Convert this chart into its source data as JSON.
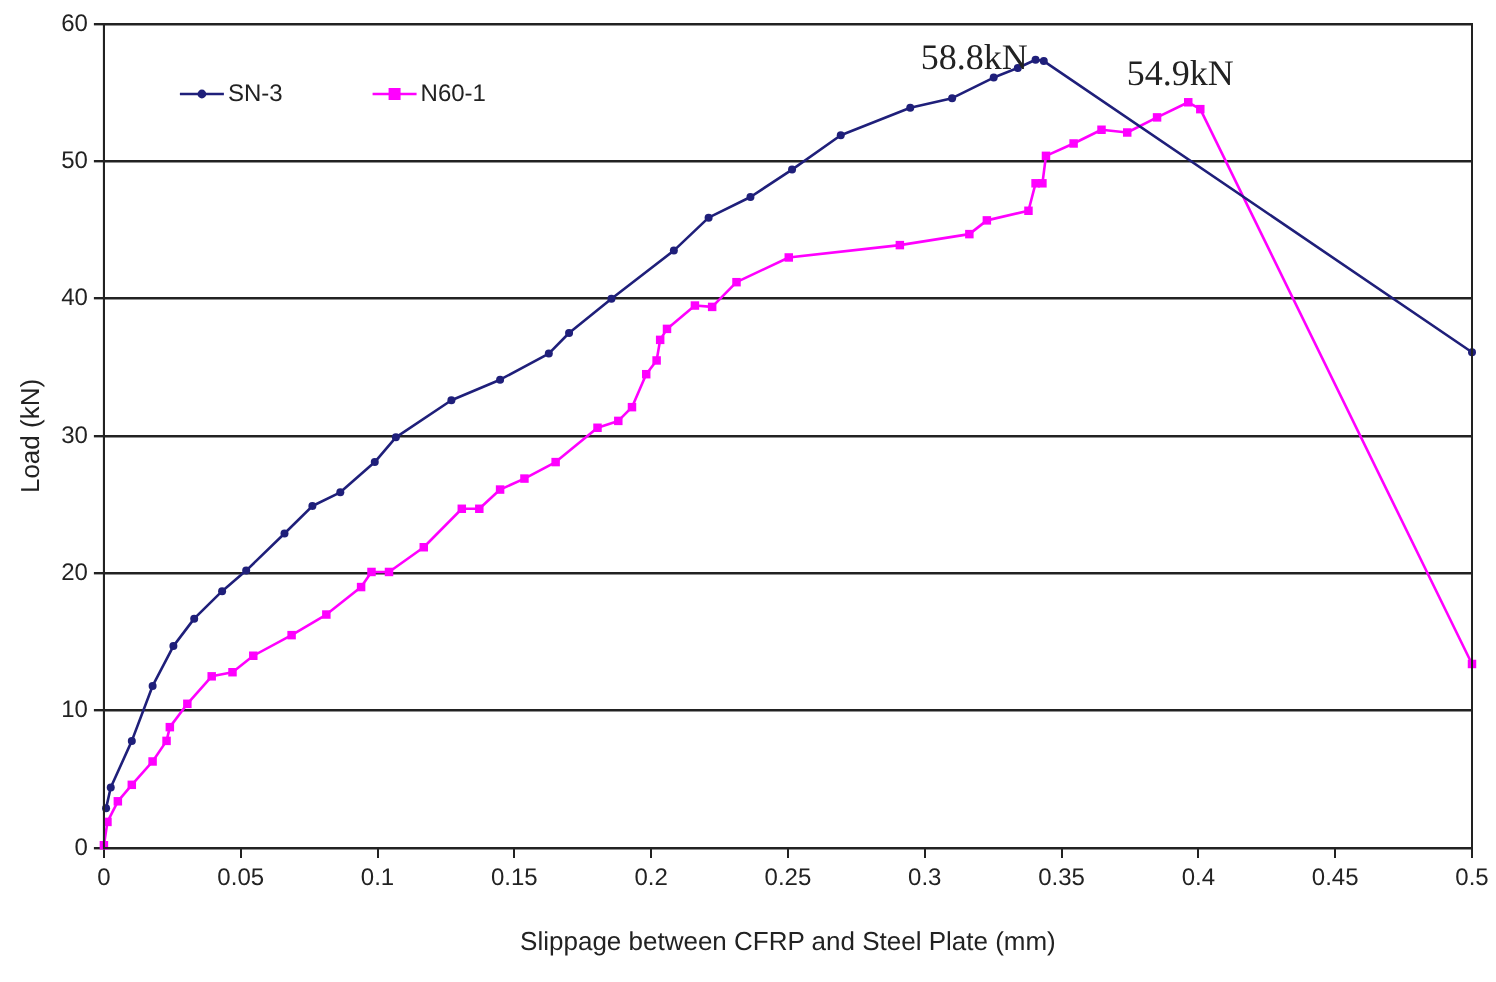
{
  "chart_data": {
    "type": "line",
    "xlabel": "Slippage between CFRP and Steel Plate (mm)",
    "ylabel": "Load (kN)",
    "xlim": [
      0,
      0.5
    ],
    "xticks": [
      0,
      0.05,
      0.1,
      0.15,
      0.2,
      0.25,
      0.3,
      0.35,
      0.4,
      0.45,
      0.5
    ],
    "ylim": [
      0,
      60
    ],
    "yticks": [
      0,
      10,
      20,
      30,
      40,
      50,
      60
    ],
    "grid": "y",
    "legend": "top left",
    "line_style": "solid",
    "annotations": [
      {
        "text": "58.8kN",
        "x": 0.3435,
        "y": 57.3
      },
      {
        "text": "54.9kN",
        "x": 0.4007,
        "y": 53.8
      }
    ],
    "series": [
      {
        "name": "SN-3",
        "color": "#1f1f7a",
        "marker": "circle",
        "x": [
          0.0008,
          0.0025,
          0.0102,
          0.0178,
          0.0254,
          0.033,
          0.0432,
          0.052,
          0.066,
          0.0762,
          0.0864,
          0.099,
          0.1067,
          0.127,
          0.1448,
          0.1626,
          0.17,
          0.1855,
          0.2083,
          0.221,
          0.2363,
          0.2515,
          0.2693,
          0.2947,
          0.31,
          0.3252,
          0.334,
          0.3405,
          0.3435,
          0.5
        ],
        "values": [
          2.9,
          4.4,
          7.8,
          11.8,
          14.7,
          16.7,
          18.7,
          20.2,
          22.9,
          24.9,
          25.9,
          28.1,
          29.9,
          32.6,
          34.1,
          36,
          37.5,
          40,
          43.5,
          45.9,
          47.4,
          49.4,
          51.9,
          53.9,
          54.6,
          56.1,
          56.8,
          57.4,
          57.3,
          36.1
        ]
      },
      {
        "name": "N60-1",
        "color": "#ff00ff",
        "marker": "square",
        "x": [
          0,
          0.0013,
          0.0051,
          0.0102,
          0.0178,
          0.0229,
          0.0241,
          0.0305,
          0.0394,
          0.047,
          0.0546,
          0.0686,
          0.0813,
          0.094,
          0.0978,
          0.1042,
          0.1169,
          0.1308,
          0.1372,
          0.1448,
          0.1537,
          0.1651,
          0.1804,
          0.188,
          0.193,
          0.1982,
          0.202,
          0.2033,
          0.2058,
          0.216,
          0.2223,
          0.2312,
          0.2503,
          0.2909,
          0.3163,
          0.3227,
          0.3379,
          0.3405,
          0.343,
          0.3443,
          0.3544,
          0.3646,
          0.374,
          0.3849,
          0.3963,
          0.4007,
          0.5
        ],
        "values": [
          0.2,
          1.9,
          3.4,
          4.6,
          6.3,
          7.8,
          8.8,
          10.5,
          12.5,
          12.8,
          14,
          15.5,
          17,
          19,
          20.1,
          20.1,
          21.9,
          24.7,
          24.7,
          26.1,
          26.9,
          28.1,
          30.6,
          31.1,
          32.1,
          34.5,
          35.5,
          37,
          37.8,
          39.5,
          39.4,
          41.2,
          43,
          43.9,
          44.7,
          45.7,
          46.4,
          48.4,
          48.4,
          50.4,
          51.3,
          52.3,
          52.1,
          53.2,
          54.3,
          53.8,
          13.4
        ]
      }
    ]
  }
}
